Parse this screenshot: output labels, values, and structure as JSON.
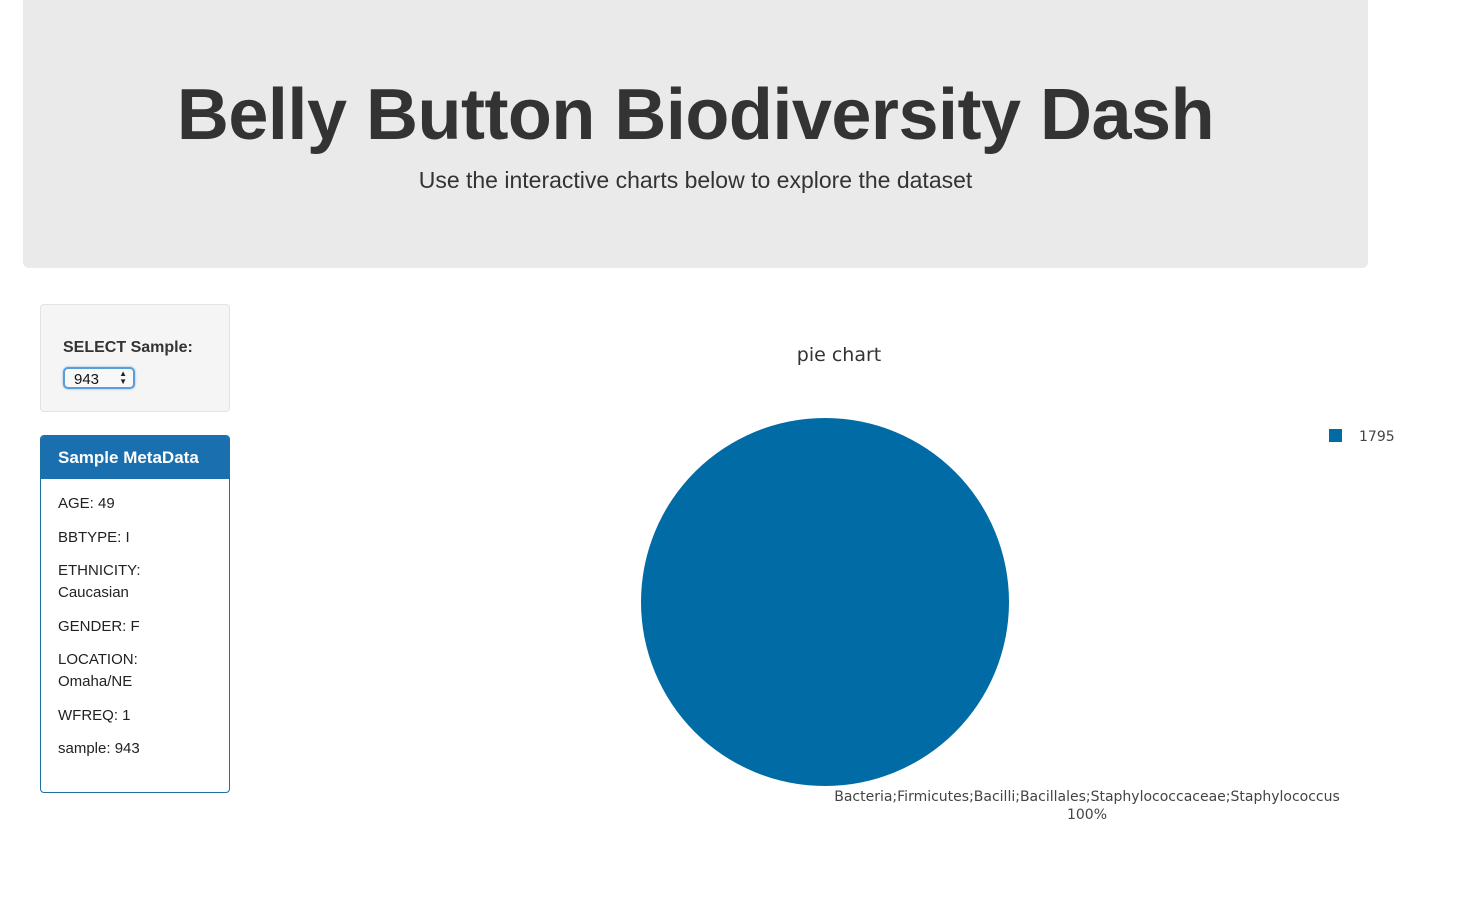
{
  "header": {
    "title": "Belly Button Biodiversity Dash",
    "subtitle": "Use the interactive charts below to explore the dataset"
  },
  "selector": {
    "label": "SELECT Sample:",
    "selected_value": "943"
  },
  "metadata_panel": {
    "title": "Sample MetaData",
    "items": [
      "AGE: 49",
      "BBTYPE: I",
      "ETHNICITY: Caucasian",
      "GENDER: F",
      "LOCATION: Omaha/NE",
      "WFREQ: 1",
      "sample: 943"
    ]
  },
  "chart_data": {
    "type": "pie",
    "title": "pie chart",
    "labels": [
      "1795"
    ],
    "values": [
      1
    ],
    "hover_text": [
      "Bacteria;Firmicutes;Bacilli;Bacillales;Staphylococcaceae;Staphylococcus"
    ],
    "percent_labels": [
      "100%"
    ],
    "colors": [
      "#006ba4"
    ],
    "legend_placement": "top-right"
  }
}
